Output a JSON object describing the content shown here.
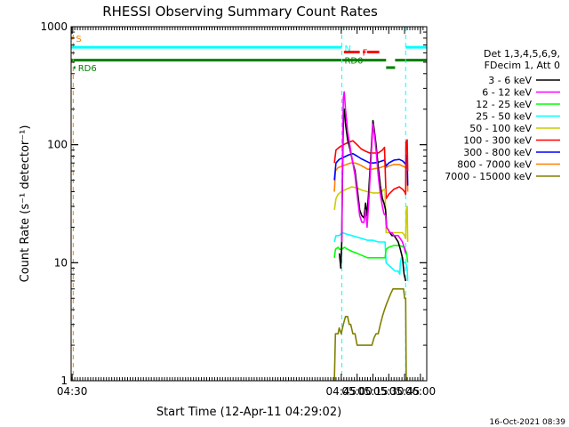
{
  "chart_data": {
    "type": "line",
    "title": "RHESSI Observing Summary Count Rates",
    "xlabel": "Start Time (12-Apr-11 04:29:02)",
    "ylabel": "Count Rate (s⁻¹ detector⁻¹)",
    "yscale": "log",
    "ylim": [
      1,
      1000
    ],
    "xlim_minutes": [
      29.03,
      366
    ],
    "x_ticks": [
      {
        "m": 30,
        "label": "04:30"
      },
      {
        "m": 285,
        "label": "04:45"
      },
      {
        "m": 300,
        "label": "05:00"
      },
      {
        "m": 315,
        "label": "05:15"
      },
      {
        "m": 330,
        "label": "05:30"
      },
      {
        "m": 345,
        "label": "05:45"
      },
      {
        "m": 360,
        "label": "06:00"
      }
    ],
    "y_ticks": [
      {
        "v": 1,
        "label": "1"
      },
      {
        "v": 10,
        "label": "10"
      },
      {
        "v": 100,
        "label": "100"
      },
      {
        "v": 1000,
        "label": "1000"
      }
    ],
    "legend_header": [
      "Det 1,3,4,5,6,9,",
      "FDecim 1, Att 0"
    ],
    "legend_position": "right",
    "series": [
      {
        "name": "3 - 6 keV",
        "color": "#000000",
        "points": [
          [
            283.2,
            12
          ],
          [
            284.5,
            9
          ],
          [
            285.5,
            15
          ],
          [
            286.5,
            90
          ],
          [
            287.2,
            190
          ],
          [
            288,
            200
          ],
          [
            289,
            150
          ],
          [
            291,
            110
          ],
          [
            293.5,
            90
          ],
          [
            296,
            70
          ],
          [
            298,
            60
          ],
          [
            300.5,
            40
          ],
          [
            302.5,
            28
          ],
          [
            304.5,
            25
          ],
          [
            306.5,
            24
          ],
          [
            308,
            32
          ],
          [
            309.5,
            25
          ],
          [
            311,
            40
          ],
          [
            313,
            80
          ],
          [
            315,
            160
          ],
          [
            316.5,
            130
          ],
          [
            318,
            100
          ],
          [
            320,
            65
          ],
          [
            322,
            45
          ],
          [
            324,
            35
          ],
          [
            325.5,
            32
          ],
          [
            327,
            28
          ],
          [
            328,
            20
          ],
          [
            329.5,
            19
          ],
          [
            331,
            18
          ],
          [
            333,
            17
          ],
          [
            335,
            17
          ],
          [
            337,
            16
          ],
          [
            339,
            15
          ],
          [
            341,
            13
          ],
          [
            343,
            11
          ],
          [
            344.5,
            8
          ],
          [
            346,
            7
          ]
        ]
      },
      {
        "name": "6 - 12 keV",
        "color": "#ff00ff",
        "points": [
          [
            285.5,
            15
          ],
          [
            286.3,
            100
          ],
          [
            287,
            250
          ],
          [
            287.8,
            280
          ],
          [
            289,
            200
          ],
          [
            291,
            130
          ],
          [
            293.5,
            95
          ],
          [
            296,
            70
          ],
          [
            298,
            55
          ],
          [
            300.5,
            35
          ],
          [
            302.5,
            25
          ],
          [
            304.5,
            22
          ],
          [
            306.5,
            22
          ],
          [
            308,
            28
          ],
          [
            309.5,
            20
          ],
          [
            311,
            32
          ],
          [
            313,
            70
          ],
          [
            315,
            150
          ],
          [
            316.5,
            120
          ],
          [
            318,
            90
          ],
          [
            320,
            55
          ],
          [
            322,
            38
          ],
          [
            324,
            30
          ],
          [
            325.5,
            26
          ],
          [
            327,
            25
          ],
          [
            328,
            20
          ],
          [
            329.5,
            19
          ],
          [
            331,
            18
          ],
          [
            333,
            18
          ],
          [
            335,
            17
          ],
          [
            337,
            17
          ],
          [
            339,
            17
          ],
          [
            341,
            16
          ],
          [
            343,
            15
          ],
          [
            345,
            13
          ],
          [
            346,
            12
          ]
        ]
      },
      {
        "name": "12 - 25 keV",
        "color": "#00ff00",
        "points": [
          [
            278.5,
            11
          ],
          [
            279.5,
            13
          ],
          [
            282,
            13.5
          ],
          [
            283.5,
            13
          ],
          [
            285.5,
            13
          ],
          [
            288,
            13.5
          ],
          [
            291,
            13
          ],
          [
            295,
            12.5
          ],
          [
            300,
            12
          ],
          [
            305,
            11.5
          ],
          [
            310,
            11
          ],
          [
            315,
            11
          ],
          [
            320,
            11
          ],
          [
            324,
            11
          ],
          [
            326.5,
            11
          ],
          [
            327.5,
            13
          ],
          [
            330,
            13.5
          ],
          [
            335,
            14
          ],
          [
            340,
            14
          ],
          [
            345,
            13.5
          ],
          [
            347,
            12
          ],
          [
            348,
            10
          ]
        ]
      },
      {
        "name": "25 - 50 keV",
        "color": "#00ffff",
        "points": [
          [
            278.5,
            15
          ],
          [
            280,
            17
          ],
          [
            283,
            17
          ],
          [
            286,
            18
          ],
          [
            290,
            17.5
          ],
          [
            295,
            17
          ],
          [
            300,
            16.5
          ],
          [
            305,
            16
          ],
          [
            310,
            15.5
          ],
          [
            315,
            15.5
          ],
          [
            320,
            15
          ],
          [
            324,
            15
          ],
          [
            326.5,
            15
          ],
          [
            327.5,
            10
          ],
          [
            330,
            9.5
          ],
          [
            333,
            9
          ],
          [
            336,
            8.5
          ],
          [
            339,
            8.5
          ],
          [
            340.5,
            8
          ],
          [
            341,
            10
          ],
          [
            342,
            11
          ],
          [
            343,
            11
          ],
          [
            344,
            10
          ],
          [
            345,
            10
          ],
          [
            346,
            10
          ],
          [
            347.5,
            9
          ],
          [
            348,
            7
          ]
        ]
      },
      {
        "name": "50 - 100 keV",
        "color": "#cccc00",
        "points": [
          [
            278.5,
            28
          ],
          [
            280,
            35
          ],
          [
            282,
            38
          ],
          [
            285,
            40
          ],
          [
            290,
            42
          ],
          [
            295,
            44
          ],
          [
            300,
            43
          ],
          [
            305,
            41
          ],
          [
            310,
            40
          ],
          [
            315,
            39
          ],
          [
            320,
            39
          ],
          [
            323,
            40
          ],
          [
            326,
            42
          ],
          [
            326.5,
            42
          ],
          [
            327.5,
            18
          ],
          [
            330,
            18
          ],
          [
            335,
            18
          ],
          [
            340,
            18
          ],
          [
            343,
            18
          ],
          [
            345,
            17
          ],
          [
            346,
            16
          ],
          [
            346.5,
            28
          ],
          [
            347.5,
            30
          ],
          [
            348,
            15
          ]
        ]
      },
      {
        "name": "100 - 300 keV",
        "color": "#ff0000",
        "points": [
          [
            278.5,
            70
          ],
          [
            280,
            90
          ],
          [
            283,
            95
          ],
          [
            287,
            100
          ],
          [
            292,
            105
          ],
          [
            296,
            108
          ],
          [
            300,
            100
          ],
          [
            304,
            92
          ],
          [
            308,
            88
          ],
          [
            312,
            85
          ],
          [
            316,
            85
          ],
          [
            320,
            85
          ],
          [
            324,
            90
          ],
          [
            326,
            95
          ],
          [
            327.5,
            35
          ],
          [
            330,
            38
          ],
          [
            335,
            42
          ],
          [
            340,
            44
          ],
          [
            343,
            42
          ],
          [
            345,
            40
          ],
          [
            346,
            38
          ],
          [
            346.3,
            105
          ],
          [
            347.5,
            110
          ],
          [
            348,
            60
          ]
        ]
      },
      {
        "name": "300 - 800 keV",
        "color": "#0000ff",
        "points": [
          [
            278.5,
            50
          ],
          [
            280,
            70
          ],
          [
            283,
            75
          ],
          [
            287,
            78
          ],
          [
            292,
            82
          ],
          [
            296,
            84
          ],
          [
            300,
            80
          ],
          [
            304,
            76
          ],
          [
            308,
            73
          ],
          [
            312,
            70
          ],
          [
            316,
            70
          ],
          [
            320,
            71
          ],
          [
            324,
            73
          ],
          [
            326,
            74
          ],
          [
            327.5,
            66
          ],
          [
            330,
            70
          ],
          [
            335,
            74
          ],
          [
            340,
            75
          ],
          [
            343,
            73
          ],
          [
            345,
            70
          ],
          [
            346,
            68
          ],
          [
            346.5,
            80
          ],
          [
            347.5,
            82
          ],
          [
            348,
            45
          ]
        ]
      },
      {
        "name": "800 - 7000 keV",
        "color": "#ff8000",
        "points": [
          [
            278.5,
            40
          ],
          [
            279.5,
            60
          ],
          [
            282,
            64
          ],
          [
            286,
            66
          ],
          [
            290,
            68
          ],
          [
            294,
            70
          ],
          [
            298,
            70
          ],
          [
            302,
            68
          ],
          [
            306,
            65
          ],
          [
            310,
            62
          ],
          [
            314,
            62
          ],
          [
            318,
            63
          ],
          [
            322,
            64
          ],
          [
            326,
            66
          ],
          [
            327.5,
            64
          ],
          [
            330,
            66
          ],
          [
            335,
            68
          ],
          [
            340,
            68
          ],
          [
            343,
            66
          ],
          [
            345,
            65
          ],
          [
            346,
            63
          ],
          [
            346.5,
            68
          ],
          [
            347.5,
            68
          ],
          [
            348,
            40
          ]
        ]
      },
      {
        "name": "7000 - 15000 keV",
        "color": "#808000",
        "points": [
          [
            278.5,
            1
          ],
          [
            279.5,
            2.5
          ],
          [
            282,
            2.5
          ],
          [
            283,
            2.8
          ],
          [
            285,
            2.5
          ],
          [
            287,
            3
          ],
          [
            289,
            3.5
          ],
          [
            291,
            3.5
          ],
          [
            292.5,
            3
          ],
          [
            294,
            3
          ],
          [
            296,
            2.5
          ],
          [
            298,
            2.5
          ],
          [
            300,
            2
          ],
          [
            302,
            2
          ],
          [
            304,
            2
          ],
          [
            306,
            2
          ],
          [
            308,
            2
          ],
          [
            310,
            2
          ],
          [
            312,
            2
          ],
          [
            314,
            2
          ],
          [
            316,
            2.3
          ],
          [
            318,
            2.5
          ],
          [
            320,
            2.5
          ],
          [
            322,
            3
          ],
          [
            324,
            3.5
          ],
          [
            326,
            4
          ],
          [
            328,
            4.5
          ],
          [
            330,
            5
          ],
          [
            332,
            5.5
          ],
          [
            334,
            6
          ],
          [
            336,
            6
          ],
          [
            338,
            6
          ],
          [
            340,
            6
          ],
          [
            342,
            6
          ],
          [
            344,
            6
          ],
          [
            345,
            5
          ],
          [
            346,
            5
          ],
          [
            346.5,
            1
          ]
        ]
      }
    ],
    "flag_bars": [
      {
        "label": "S",
        "color": "#ff8000",
        "value": 800,
        "ranges": [
          [
            29.03,
            31
          ]
        ]
      },
      {
        "label": "N",
        "color": "#00ffff",
        "value": 670,
        "ranges": [
          [
            29.03,
            285.5
          ],
          [
            346,
            366
          ]
        ]
      },
      {
        "label": "F",
        "color": "#ff0000",
        "value": 610,
        "ranges": [
          [
            287.5,
            302.5
          ],
          [
            305.5,
            307.5
          ],
          [
            309.5,
            321
          ]
        ]
      },
      {
        "label": "RD0",
        "color": "#008000",
        "value": 520,
        "ranges": [
          [
            29.03,
            285.5
          ],
          [
            286,
            327.5
          ],
          [
            336,
            366
          ]
        ]
      },
      {
        "label": "RD6",
        "color": "#008000",
        "value": 450,
        "ranges": [
          [
            31.5,
            33
          ],
          [
            327.5,
            336
          ]
        ]
      }
    ],
    "vlines": [
      {
        "m": 31,
        "color": "#ff8000"
      },
      {
        "m": 285.5,
        "color": "#00ffff"
      },
      {
        "m": 346,
        "color": "#00ffff"
      },
      {
        "m": 366,
        "color": "#00ffff"
      }
    ],
    "footer_timestamp": "16-Oct-2021 08:39"
  }
}
